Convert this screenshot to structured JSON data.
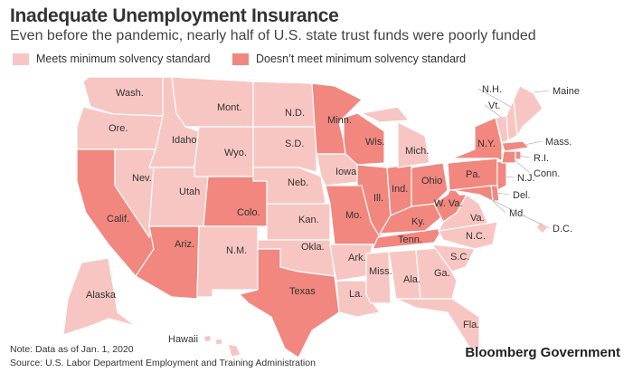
{
  "title": "Inadequate Unemployment Insurance",
  "subtitle": "Even before the pandemic, nearly half of U.S. state trust funds were poorly funded",
  "legend": {
    "meets": "Meets minimum solvency standard",
    "not_meets": "Doesn’t meet minimum solvency standard"
  },
  "colors": {
    "meets": "#f8c6c2",
    "not_meets": "#f1877e",
    "border": "#ffffff",
    "text": "#333333"
  },
  "states": [
    {
      "id": "wa",
      "label": "Wash.",
      "status": "meets"
    },
    {
      "id": "or",
      "label": "Ore.",
      "status": "meets"
    },
    {
      "id": "ca",
      "label": "Calif.",
      "status": "not_meets"
    },
    {
      "id": "id",
      "label": "Idaho",
      "status": "meets"
    },
    {
      "id": "nv",
      "label": "Nev.",
      "status": "meets"
    },
    {
      "id": "mt",
      "label": "Mont.",
      "status": "meets"
    },
    {
      "id": "wy",
      "label": "Wyo.",
      "status": "meets"
    },
    {
      "id": "ut",
      "label": "Utah",
      "status": "meets"
    },
    {
      "id": "az",
      "label": "Ariz.",
      "status": "not_meets"
    },
    {
      "id": "co",
      "label": "Colo.",
      "status": "not_meets"
    },
    {
      "id": "nm",
      "label": "N.M.",
      "status": "meets"
    },
    {
      "id": "nd",
      "label": "N.D.",
      "status": "meets"
    },
    {
      "id": "sd",
      "label": "S.D.",
      "status": "meets"
    },
    {
      "id": "ne",
      "label": "Neb.",
      "status": "meets"
    },
    {
      "id": "ks",
      "label": "Kan.",
      "status": "meets"
    },
    {
      "id": "ok",
      "label": "Okla.",
      "status": "meets"
    },
    {
      "id": "tx",
      "label": "Texas",
      "status": "not_meets"
    },
    {
      "id": "mn",
      "label": "Minn.",
      "status": "not_meets"
    },
    {
      "id": "ia",
      "label": "Iowa",
      "status": "meets"
    },
    {
      "id": "wi",
      "label": "Wis.",
      "status": "not_meets"
    },
    {
      "id": "il",
      "label": "Ill.",
      "status": "not_meets"
    },
    {
      "id": "mo",
      "label": "Mo.",
      "status": "not_meets"
    },
    {
      "id": "ar",
      "label": "Ark.",
      "status": "meets"
    },
    {
      "id": "la",
      "label": "La.",
      "status": "meets"
    },
    {
      "id": "ms",
      "label": "Miss.",
      "status": "meets"
    },
    {
      "id": "al",
      "label": "Ala.",
      "status": "meets"
    },
    {
      "id": "ga",
      "label": "Ga.",
      "status": "meets"
    },
    {
      "id": "fl",
      "label": "Fla.",
      "status": "meets"
    },
    {
      "id": "tn",
      "label": "Tenn.",
      "status": "not_meets"
    },
    {
      "id": "ky",
      "label": "Ky.",
      "status": "not_meets"
    },
    {
      "id": "in",
      "label": "Ind.",
      "status": "not_meets"
    },
    {
      "id": "oh",
      "label": "Ohio",
      "status": "not_meets"
    },
    {
      "id": "mi",
      "label": "Mich.",
      "status": "meets"
    },
    {
      "id": "wv",
      "label": "W. Va.",
      "status": "not_meets"
    },
    {
      "id": "va",
      "label": "Va.",
      "status": "meets"
    },
    {
      "id": "nc",
      "label": "N.C.",
      "status": "meets"
    },
    {
      "id": "sc",
      "label": "S.C.",
      "status": "meets"
    },
    {
      "id": "pa",
      "label": "Pa.",
      "status": "not_meets"
    },
    {
      "id": "ny",
      "label": "N.Y.",
      "status": "not_meets"
    },
    {
      "id": "nj",
      "label": "N.J.",
      "status": "not_meets"
    },
    {
      "id": "de",
      "label": "Del.",
      "status": "not_meets"
    },
    {
      "id": "md",
      "label": "Md.",
      "status": "not_meets"
    },
    {
      "id": "vt",
      "label": "Vt.",
      "status": "meets"
    },
    {
      "id": "nh",
      "label": "N.H.",
      "status": "meets"
    },
    {
      "id": "me",
      "label": "Maine",
      "status": "meets"
    },
    {
      "id": "ma",
      "label": "Mass.",
      "status": "not_meets"
    },
    {
      "id": "ct",
      "label": "Conn.",
      "status": "not_meets"
    },
    {
      "id": "ri",
      "label": "R.I.",
      "status": "not_meets"
    },
    {
      "id": "dc",
      "label": "D.C.",
      "status": "meets"
    },
    {
      "id": "ak",
      "label": "Alaska",
      "status": "meets"
    },
    {
      "id": "hi",
      "label": "Hawaii",
      "status": "meets"
    }
  ],
  "footer": {
    "note": "Note: Data as of Jan. 1, 2020",
    "source": "Source: U.S. Labor Department Employment and Training Administration",
    "brand": "Bloomberg Government"
  }
}
